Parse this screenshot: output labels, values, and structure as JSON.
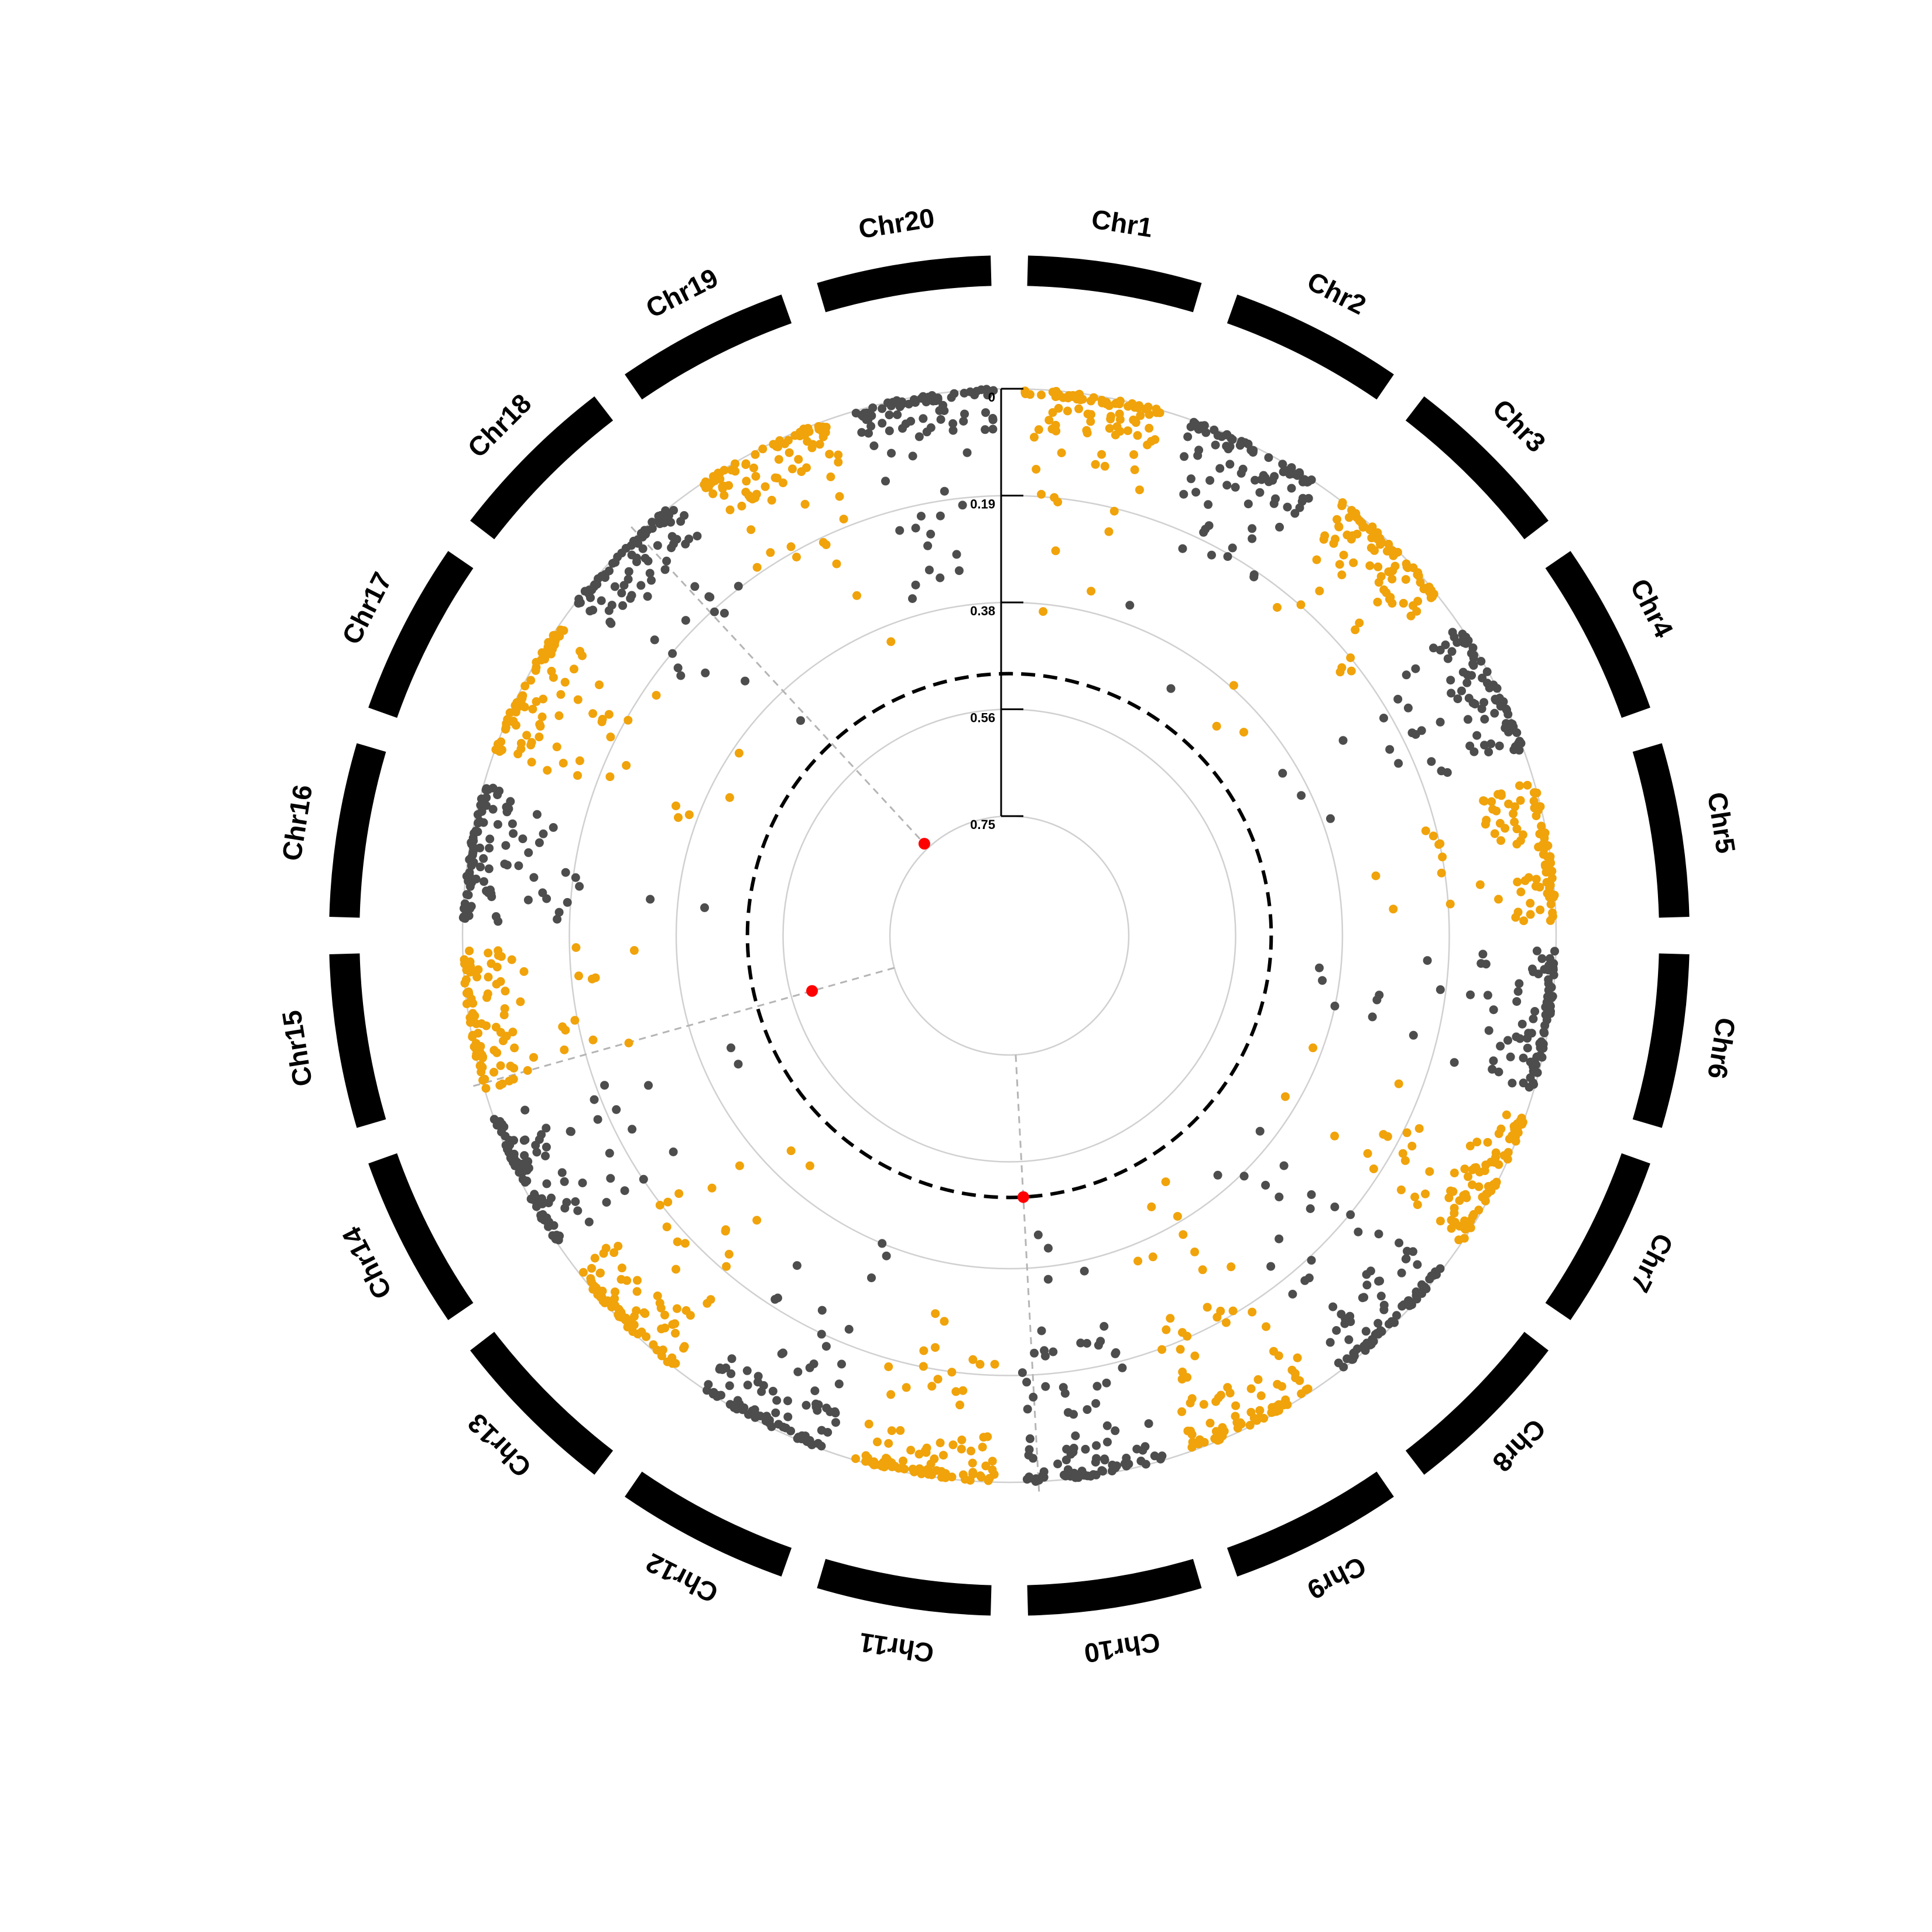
{
  "chart_data": {
    "type": "scatter",
    "subtype": "circular-manhattan",
    "title": "",
    "chromosomes": [
      "Chr1",
      "Chr2",
      "Chr3",
      "Chr4",
      "Chr5",
      "Chr6",
      "Chr7",
      "Chr8",
      "Chr9",
      "Chr10",
      "Chr11",
      "Chr12",
      "Chr13",
      "Chr14",
      "Chr15",
      "Chr16",
      "Chr17",
      "Chr18",
      "Chr19",
      "Chr20"
    ],
    "radial_axis": {
      "ticks": [
        "0",
        "0.19",
        "0.38",
        "0.56",
        "0.75"
      ],
      "range": [
        0,
        0.75
      ],
      "direction": "inward"
    },
    "threshold": 0.5,
    "colors": {
      "odd_chromosomes": "#F0A30A",
      "even_chromosomes": "#4D4D4D",
      "significant": "#FF0000",
      "ideogram": "#000000"
    },
    "highlights": [
      {
        "chromosome": "Chr10",
        "position": 0.9,
        "value": 0.5
      },
      {
        "chromosome": "Chr15",
        "position": 0.05,
        "value": 0.6
      },
      {
        "chromosome": "Chr18",
        "position": 0.65,
        "value": 0.74
      }
    ]
  }
}
